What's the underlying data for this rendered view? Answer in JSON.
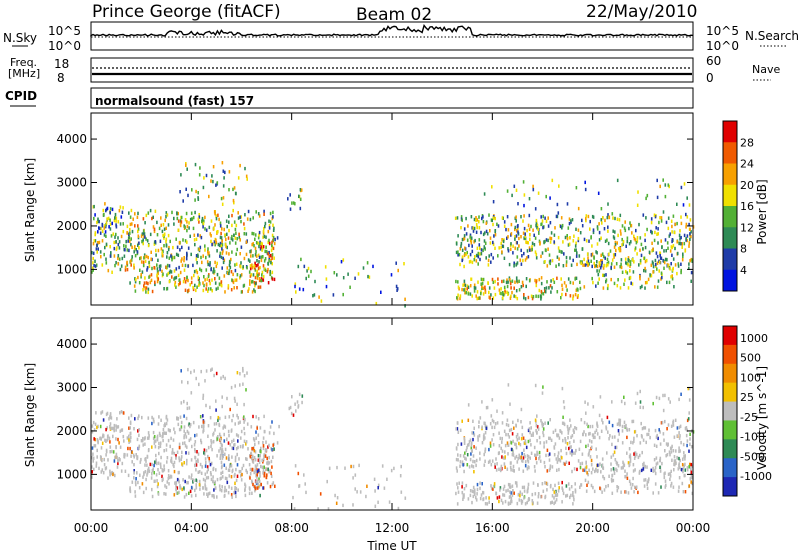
{
  "header": {
    "station": "Prince George (fitACF)",
    "beam": "Beam 02",
    "date": "22/May/2010"
  },
  "top_strips": {
    "nsky_label": "N.Sky",
    "nsearch_label": "N.Search",
    "tick_hi": "10^5",
    "tick_lo": "10^0",
    "freq_label_1": "Freq.",
    "freq_label_2": "[MHz]",
    "freq_ticks": [
      "18",
      "8"
    ],
    "nave_ticks": [
      "60",
      "0"
    ],
    "nave_label": "Nave",
    "cpid_label": "CPID",
    "cpid_text": "normalsound (fast) 157"
  },
  "colors": {
    "power_scale": [
      "#0014e0",
      "#1f3ca8",
      "#2e8a55",
      "#52b035",
      "#f0e000",
      "#f7a000",
      "#f05a00",
      "#e00000"
    ],
    "velocity_scale": [
      "#1e28b4",
      "#2a64c8",
      "#2e8a55",
      "#60c035",
      "#bdbdbd",
      "#f2c000",
      "#f08c00",
      "#f05000",
      "#e00000"
    ]
  },
  "chart_data": [
    {
      "type": "heatmap",
      "name": "power",
      "ylabel": "Slant Range [km]",
      "y_ticks": [
        1000,
        2000,
        3000,
        4000
      ],
      "ylim": [
        180,
        4600
      ],
      "colorbar_label": "Power [dB]",
      "colorbar_ticks": [
        "4",
        "8",
        "12",
        "16",
        "20",
        "24",
        "28"
      ],
      "colorbar_range": [
        0,
        32
      ]
    },
    {
      "type": "heatmap",
      "name": "velocity",
      "ylabel": "Slant Range [km]",
      "y_ticks": [
        1000,
        2000,
        3000,
        4000
      ],
      "ylim": [
        180,
        4600
      ],
      "colorbar_label": "Velocity [m s^-1]",
      "colorbar_ticks": [
        "1000",
        "500",
        "100",
        "25",
        "-25",
        "-100",
        "-500",
        "-1000"
      ]
    }
  ],
  "x_axis": {
    "xlabel": "Time UT",
    "ticks": [
      "00:00",
      "04:00",
      "08:00",
      "12:00",
      "16:00",
      "20:00",
      "00:00"
    ],
    "xlim_hours": [
      0,
      24
    ]
  }
}
